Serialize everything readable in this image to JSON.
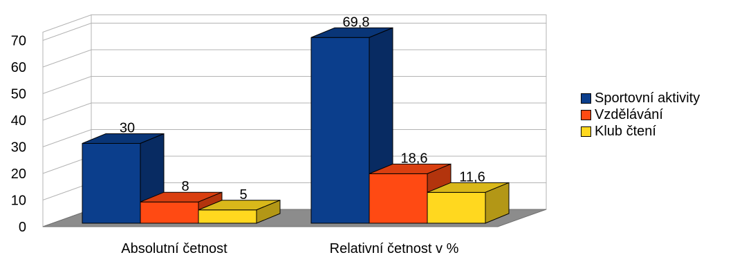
{
  "chart_data": {
    "type": "bar",
    "title": "",
    "xlabel": "",
    "ylabel": "",
    "categories": [
      "Absolutní četnost",
      "Relativní četnost v %"
    ],
    "series": [
      {
        "name": "Sportovní aktivity",
        "values": [
          30,
          69.8
        ],
        "labels": [
          "30",
          "69,8"
        ],
        "color": "#0b3e8c"
      },
      {
        "name": "Vzdělávání",
        "values": [
          8,
          18.6
        ],
        "labels": [
          "8",
          "18,6"
        ],
        "color": "#ff4a13"
      },
      {
        "name": "Klub čtení",
        "values": [
          5,
          11.6
        ],
        "labels": [
          "5",
          "11,6"
        ],
        "color": "#ffd81f"
      }
    ],
    "ylim": [
      0,
      70
    ],
    "yticks": [
      0,
      10,
      20,
      30,
      40,
      50,
      60,
      70
    ],
    "grid": true,
    "legend_position": "right",
    "style": "3d-bars"
  }
}
